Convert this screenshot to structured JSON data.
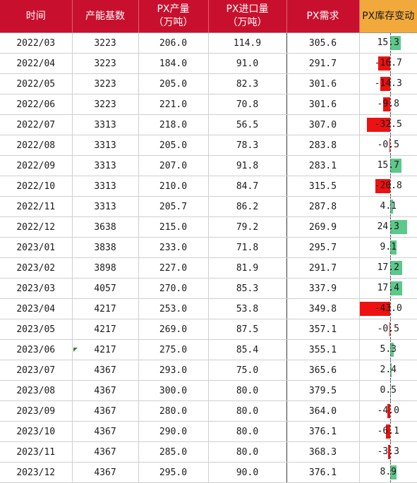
{
  "headers": {
    "date": "时间",
    "capacity": "产能基数",
    "output_line1": "PX产量",
    "output_line2": "（万吨）",
    "imports_line1": "PX进口量",
    "imports_line2": "（万吨）",
    "demand": "PX需求",
    "inventory_change": "PX库存变动"
  },
  "colors": {
    "header_bg": "#c8102e",
    "inventory_header_bg": "#f2a93b",
    "positive_bar": "#5cc98a",
    "negative_bar": "#ee1111"
  },
  "inventory_bar_scale_max_abs": 43.0,
  "rows": [
    {
      "date": "2022/03",
      "capacity": "3223",
      "output": "206.0",
      "imports": "114.9",
      "demand": "305.6",
      "inventory_change": "15.3",
      "change_value": 15.3
    },
    {
      "date": "2022/04",
      "capacity": "3223",
      "output": "184.0",
      "imports": "91.0",
      "demand": "291.7",
      "inventory_change": "-16.7",
      "change_value": -16.7
    },
    {
      "date": "2022/05",
      "capacity": "3223",
      "output": "205.0",
      "imports": "82.3",
      "demand": "301.6",
      "inventory_change": "-14.3",
      "change_value": -14.3
    },
    {
      "date": "2022/06",
      "capacity": "3223",
      "output": "221.0",
      "imports": "70.8",
      "demand": "301.6",
      "inventory_change": "-9.8",
      "change_value": -9.8
    },
    {
      "date": "2022/07",
      "capacity": "3313",
      "output": "218.0",
      "imports": "56.5",
      "demand": "307.0",
      "inventory_change": "-32.5",
      "change_value": -32.5
    },
    {
      "date": "2022/08",
      "capacity": "3313",
      "output": "205.0",
      "imports": "78.3",
      "demand": "283.8",
      "inventory_change": "-0.5",
      "change_value": -0.5
    },
    {
      "date": "2022/09",
      "capacity": "3313",
      "output": "207.0",
      "imports": "91.8",
      "demand": "283.1",
      "inventory_change": "15.7",
      "change_value": 15.7
    },
    {
      "date": "2022/10",
      "capacity": "3313",
      "output": "210.0",
      "imports": "84.7",
      "demand": "315.5",
      "inventory_change": "-20.8",
      "change_value": -20.8
    },
    {
      "date": "2022/11",
      "capacity": "3313",
      "output": "205.7",
      "imports": "86.2",
      "demand": "287.8",
      "inventory_change": "4.1",
      "change_value": 4.1
    },
    {
      "date": "2022/12",
      "capacity": "3638",
      "output": "215.0",
      "imports": "79.2",
      "demand": "269.9",
      "inventory_change": "24.3",
      "change_value": 24.3
    },
    {
      "date": "2023/01",
      "capacity": "3838",
      "output": "233.0",
      "imports": "71.8",
      "demand": "295.7",
      "inventory_change": "9.1",
      "change_value": 9.1
    },
    {
      "date": "2023/02",
      "capacity": "3898",
      "output": "227.0",
      "imports": "81.9",
      "demand": "291.7",
      "inventory_change": "17.2",
      "change_value": 17.2
    },
    {
      "date": "2023/03",
      "capacity": "4057",
      "output": "270.0",
      "imports": "85.3",
      "demand": "337.9",
      "inventory_change": "17.4",
      "change_value": 17.4
    },
    {
      "date": "2023/04",
      "capacity": "4217",
      "output": "253.0",
      "imports": "53.8",
      "demand": "349.8",
      "inventory_change": "-43.0",
      "change_value": -43.0
    },
    {
      "date": "2023/05",
      "capacity": "4217",
      "output": "269.0",
      "imports": "87.5",
      "demand": "357.1",
      "inventory_change": "-0.5",
      "change_value": -0.5
    },
    {
      "date": "2023/06",
      "capacity": "4217",
      "output": "275.0",
      "imports": "85.4",
      "demand": "355.1",
      "inventory_change": "5.3",
      "change_value": 5.3
    },
    {
      "date": "2023/07",
      "capacity": "4367",
      "output": "293.0",
      "imports": "75.0",
      "demand": "365.6",
      "inventory_change": "2.4",
      "change_value": 2.4
    },
    {
      "date": "2023/08",
      "capacity": "4367",
      "output": "300.0",
      "imports": "80.0",
      "demand": "379.5",
      "inventory_change": "0.5",
      "change_value": 0.5
    },
    {
      "date": "2023/09",
      "capacity": "4367",
      "output": "280.0",
      "imports": "80.0",
      "demand": "364.0",
      "inventory_change": "-4.0",
      "change_value": -4.0
    },
    {
      "date": "2023/10",
      "capacity": "4367",
      "output": "290.0",
      "imports": "80.0",
      "demand": "376.1",
      "inventory_change": "-6.1",
      "change_value": -6.1
    },
    {
      "date": "2023/11",
      "capacity": "4367",
      "output": "285.0",
      "imports": "80.0",
      "demand": "368.3",
      "inventory_change": "-3.3",
      "change_value": -3.3
    },
    {
      "date": "2023/12",
      "capacity": "4367",
      "output": "295.0",
      "imports": "90.0",
      "demand": "376.1",
      "inventory_change": "8.9",
      "change_value": 8.9
    }
  ]
}
